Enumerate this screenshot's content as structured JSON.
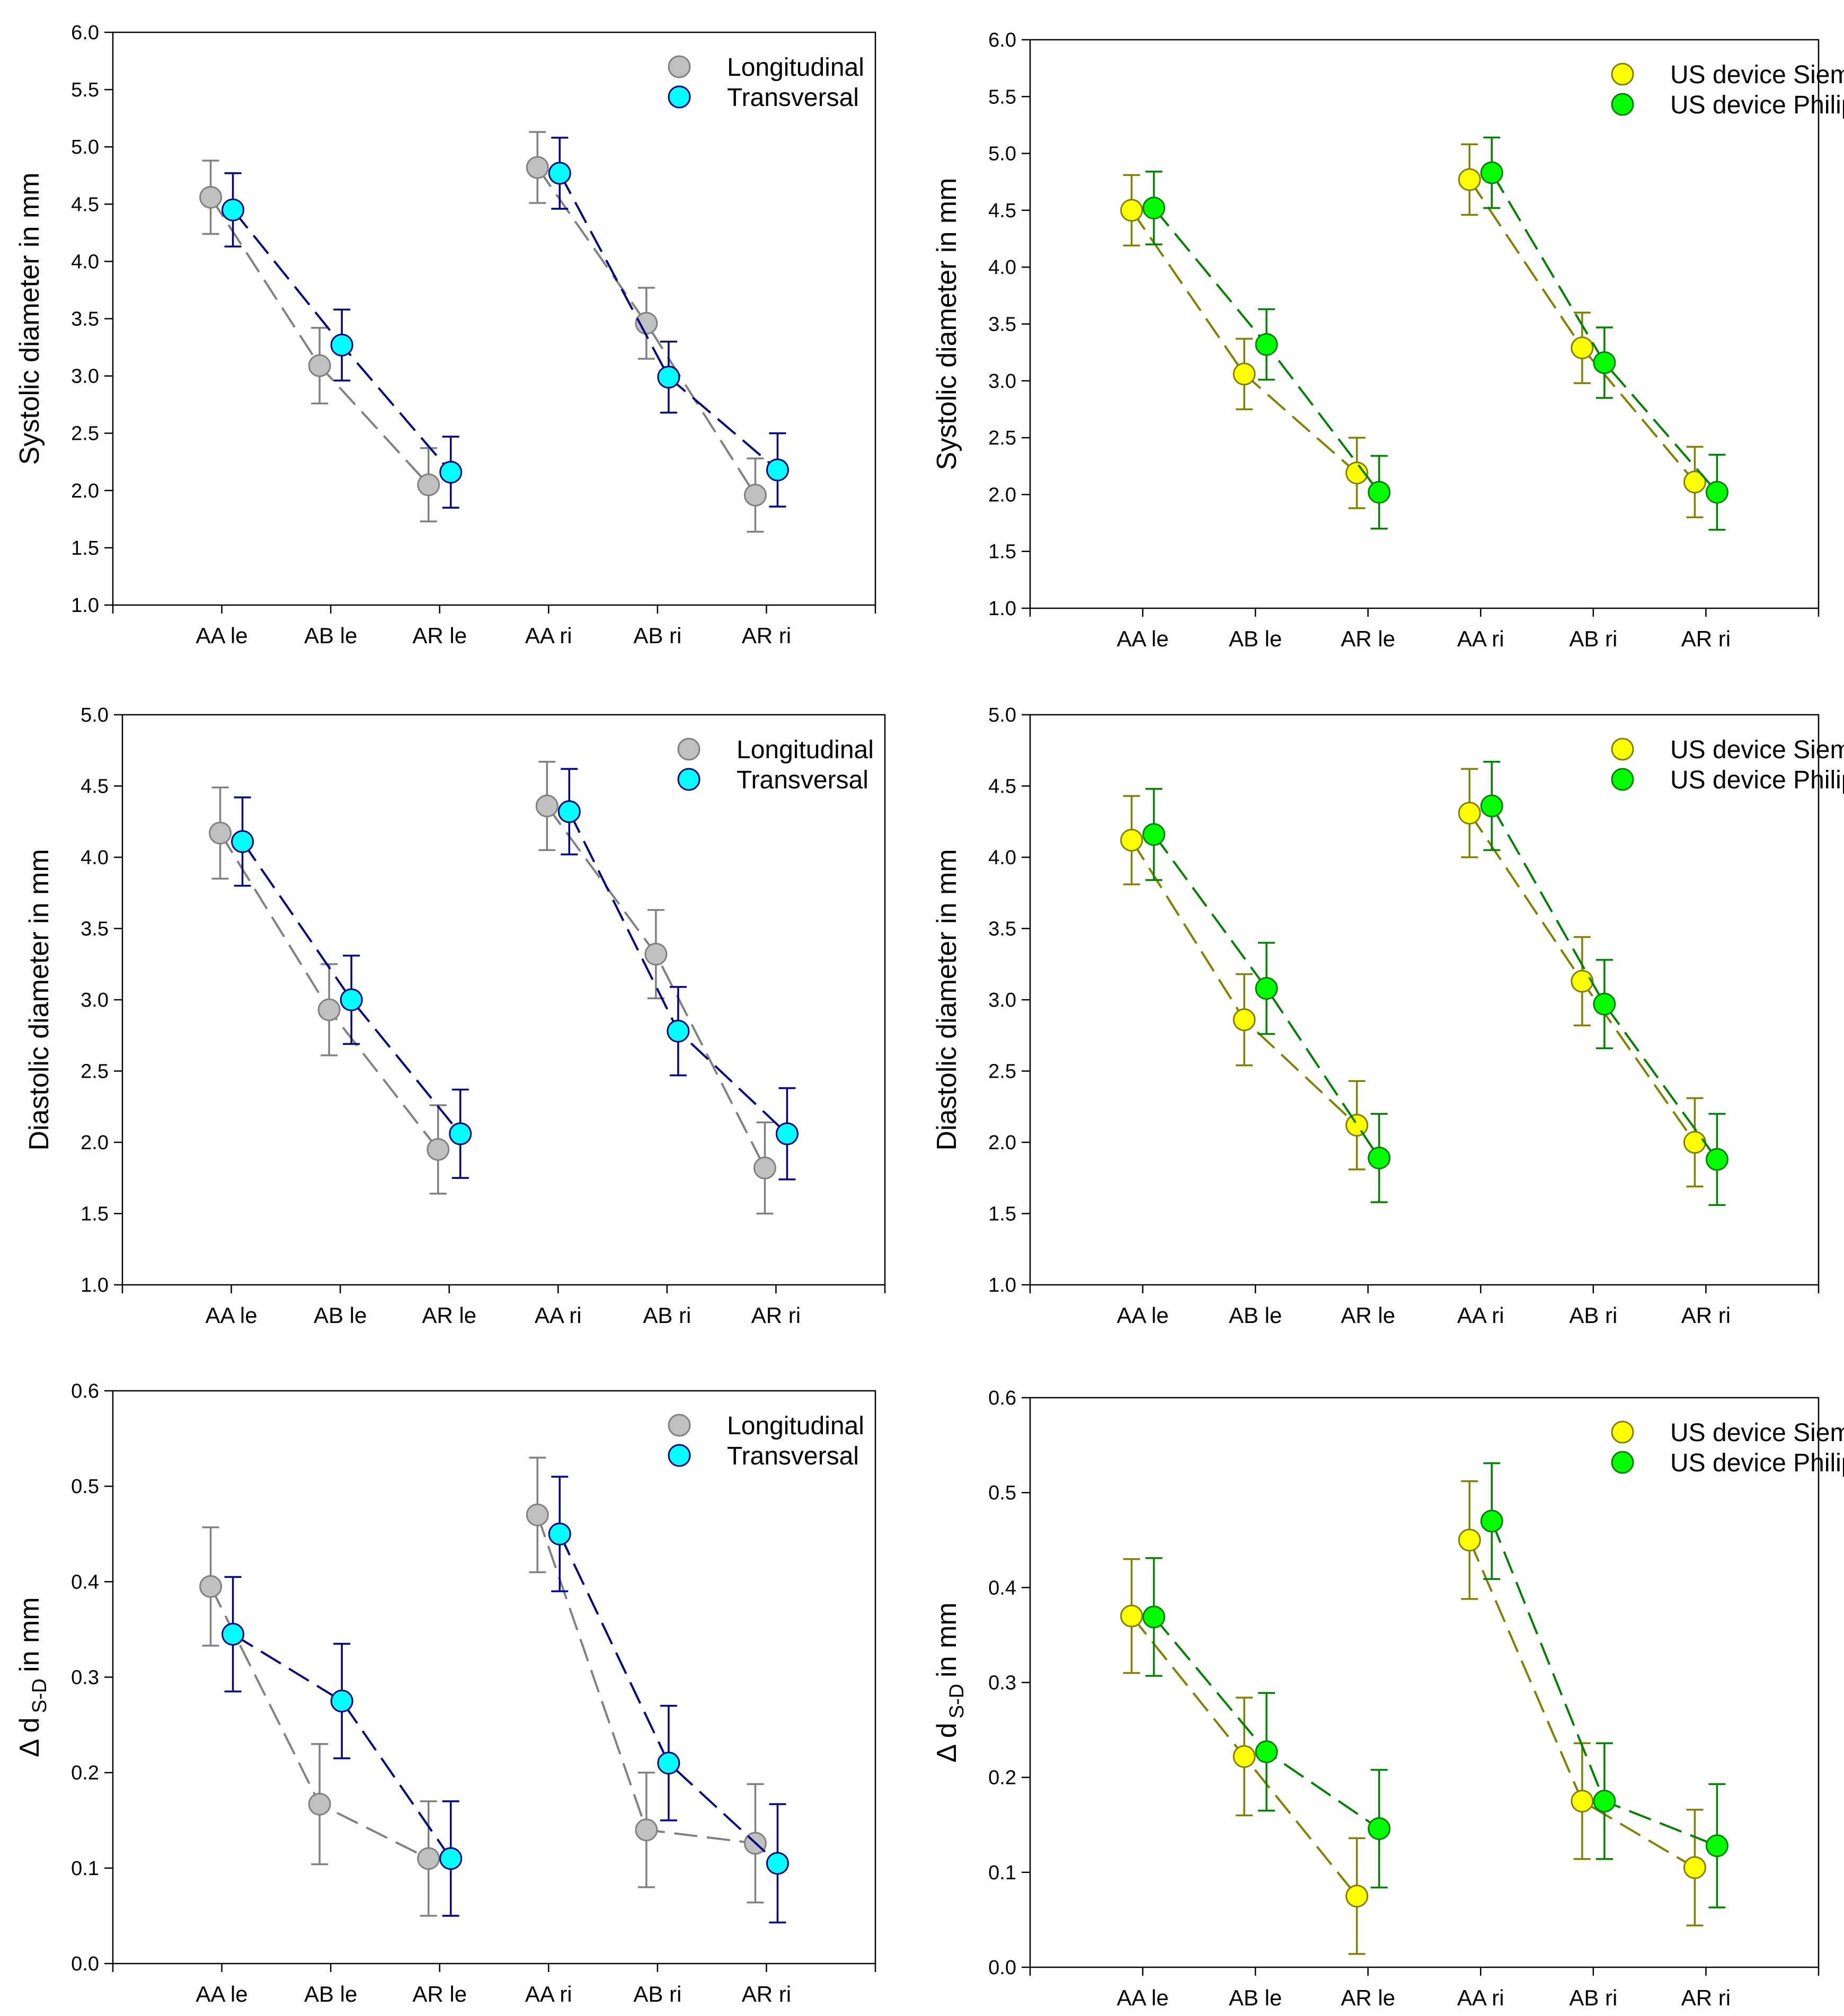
{
  "palette": {
    "longitudinal_marker": "#c0c0c0",
    "longitudinal_line": "#808080",
    "transversal_marker": "#00ffff",
    "transversal_line": "#000080",
    "siemens_marker": "#ffff00",
    "siemens_line": "#808000",
    "philips_marker": "#00ff00",
    "philips_line": "#008000"
  },
  "chart_data": [
    {
      "type": "line",
      "panel": "systolic-orientation",
      "title": "",
      "ylabel": "Systolic diameter in mm",
      "ylim": [
        1.0,
        6.0
      ],
      "yticks": [
        "1.0",
        "1.5",
        "2.0",
        "2.5",
        "3.0",
        "3.5",
        "4.0",
        "4.5",
        "5.0",
        "5.5",
        "6.0"
      ],
      "categories": [
        "AA le",
        "AB le",
        "AR le",
        "AA ri",
        "AB ri",
        "AR ri"
      ],
      "legend_position": "top-right",
      "series": [
        {
          "name": "Longitudinal",
          "values": [
            4.56,
            3.09,
            2.05,
            4.82,
            3.46,
            1.96
          ],
          "errors": [
            0.32,
            0.33,
            0.32,
            0.31,
            0.31,
            0.32
          ]
        },
        {
          "name": "Transversal",
          "values": [
            4.45,
            3.27,
            2.16,
            4.77,
            2.99,
            2.18
          ],
          "errors": [
            0.32,
            0.31,
            0.31,
            0.31,
            0.31,
            0.32
          ]
        }
      ]
    },
    {
      "type": "line",
      "panel": "systolic-device",
      "title": "",
      "ylabel": "Systolic diameter in mm",
      "ylim": [
        1.0,
        6.0
      ],
      "yticks": [
        "1.0",
        "1.5",
        "2.0",
        "2.5",
        "3.0",
        "3.5",
        "4.0",
        "4.5",
        "5.0",
        "5.5",
        "6.0"
      ],
      "categories": [
        "AA le",
        "AB le",
        "AR le",
        "AA ri",
        "AB ri",
        "AR ri"
      ],
      "legend_position": "top-right",
      "series": [
        {
          "name": "US device Siemens",
          "values": [
            4.5,
            3.06,
            2.19,
            4.77,
            3.29,
            2.11
          ],
          "errors": [
            0.31,
            0.31,
            0.31,
            0.31,
            0.31,
            0.31
          ]
        },
        {
          "name": "US device Philips",
          "values": [
            4.52,
            3.32,
            2.02,
            4.83,
            3.16,
            2.02
          ],
          "errors": [
            0.32,
            0.31,
            0.32,
            0.31,
            0.31,
            0.33
          ]
        }
      ]
    },
    {
      "type": "line",
      "panel": "diastolic-orientation",
      "title": "",
      "ylabel": "Diastolic diameter in mm",
      "ylim": [
        1.0,
        5.0
      ],
      "yticks": [
        "1.0",
        "1.5",
        "2.0",
        "2.5",
        "3.0",
        "3.5",
        "4.0",
        "4.5",
        "5.0"
      ],
      "categories": [
        "AA le",
        "AB le",
        "AR le",
        "AA ri",
        "AB ri",
        "AR ri"
      ],
      "legend_position": "top-right",
      "series": [
        {
          "name": "Longitudinal",
          "values": [
            4.17,
            2.93,
            1.95,
            4.36,
            3.32,
            1.82
          ],
          "errors": [
            0.32,
            0.32,
            0.31,
            0.31,
            0.31,
            0.32
          ]
        },
        {
          "name": "Transversal",
          "values": [
            4.11,
            3.0,
            2.06,
            4.32,
            2.78,
            2.06
          ],
          "errors": [
            0.31,
            0.31,
            0.31,
            0.3,
            0.31,
            0.32
          ]
        }
      ]
    },
    {
      "type": "line",
      "panel": "diastolic-device",
      "title": "",
      "ylabel": "Diastolic diameter in mm",
      "ylim": [
        1.0,
        5.0
      ],
      "yticks": [
        "1.0",
        "1.5",
        "2.0",
        "2.5",
        "3.0",
        "3.5",
        "4.0",
        "4.5",
        "5.0"
      ],
      "categories": [
        "AA le",
        "AB le",
        "AR le",
        "AA ri",
        "AB ri",
        "AR ri"
      ],
      "legend_position": "top-right",
      "series": [
        {
          "name": "US device Siemens",
          "values": [
            4.12,
            2.86,
            2.12,
            4.31,
            3.13,
            2.0
          ],
          "errors": [
            0.31,
            0.32,
            0.31,
            0.31,
            0.31,
            0.31
          ]
        },
        {
          "name": "US device Philips",
          "values": [
            4.16,
            3.08,
            1.89,
            4.36,
            2.97,
            1.88
          ],
          "errors": [
            0.32,
            0.32,
            0.31,
            0.31,
            0.31,
            0.32
          ]
        }
      ]
    },
    {
      "type": "line",
      "panel": "delta-orientation",
      "title": "",
      "ylabel": "Δ d",
      "ylabel_sub": "S-D",
      "ylabel_suffix": "in mm",
      "ylim": [
        0.0,
        0.6
      ],
      "yticks": [
        "0.0",
        "0.1",
        "0.2",
        "0.3",
        "0.4",
        "0.5",
        "0.6"
      ],
      "categories": [
        "AA le",
        "AB le",
        "AR le",
        "AA ri",
        "AB ri",
        "AR ri"
      ],
      "legend_position": "top-right",
      "series": [
        {
          "name": "Longitudinal",
          "values": [
            0.395,
            0.167,
            0.11,
            0.47,
            0.14,
            0.126
          ],
          "errors": [
            0.062,
            0.063,
            0.06,
            0.06,
            0.06,
            0.062
          ]
        },
        {
          "name": "Transversal",
          "values": [
            0.345,
            0.275,
            0.11,
            0.45,
            0.21,
            0.105
          ],
          "errors": [
            0.06,
            0.06,
            0.06,
            0.06,
            0.06,
            0.062
          ]
        }
      ]
    },
    {
      "type": "line",
      "panel": "delta-device",
      "title": "",
      "ylabel": "Δ d",
      "ylabel_sub": "S-D",
      "ylabel_suffix": "in mm",
      "ylim": [
        0.0,
        0.6
      ],
      "yticks": [
        "0.0",
        "0.1",
        "0.2",
        "0.3",
        "0.4",
        "0.5",
        "0.6"
      ],
      "categories": [
        "AA le",
        "AB le",
        "AR le",
        "AA ri",
        "AB ri",
        "AR ri"
      ],
      "legend_position": "top-right",
      "series": [
        {
          "name": "US device Siemens",
          "values": [
            0.37,
            0.222,
            0.075,
            0.45,
            0.175,
            0.105
          ],
          "errors": [
            0.06,
            0.062,
            0.061,
            0.062,
            0.061,
            0.061
          ]
        },
        {
          "name": "US device Philips",
          "values": [
            0.369,
            0.227,
            0.146,
            0.47,
            0.175,
            0.128
          ],
          "errors": [
            0.062,
            0.062,
            0.062,
            0.061,
            0.061,
            0.065
          ]
        }
      ]
    }
  ]
}
